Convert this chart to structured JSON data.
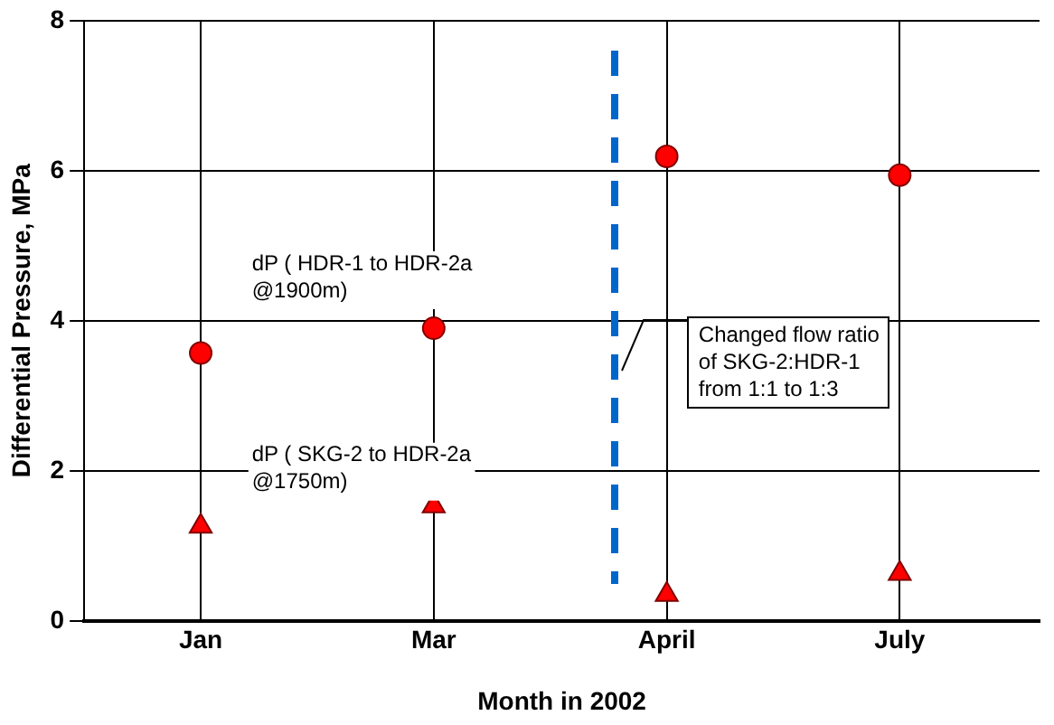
{
  "chart_data": {
    "type": "scatter",
    "xlabel": "Month in 2002",
    "ylabel": "Differential Pressure, MPa",
    "categories": [
      "Jan",
      "Mar",
      "April",
      "July"
    ],
    "series": [
      {
        "name": "dP ( HDR-1 to HDR-2a @1900m)",
        "type": "scatter",
        "marker": "circle",
        "color": "#ff0000",
        "values": [
          3.57,
          3.9,
          6.19,
          5.94
        ]
      },
      {
        "name": "dP ( SKG-2 to HDR-2a @1750m)",
        "type": "scatter",
        "marker": "triangle",
        "color": "#ff0000",
        "values": [
          1.26,
          1.53,
          0.35,
          0.63
        ]
      }
    ],
    "ylim": [
      0,
      8
    ],
    "yticks": [
      0,
      2,
      4,
      6,
      8
    ],
    "grid": true,
    "legend": false,
    "annotations": [
      "Changed flow ratio\nof SKG-2:HDR-1\nfrom 1:1 to 1:3"
    ]
  }
}
